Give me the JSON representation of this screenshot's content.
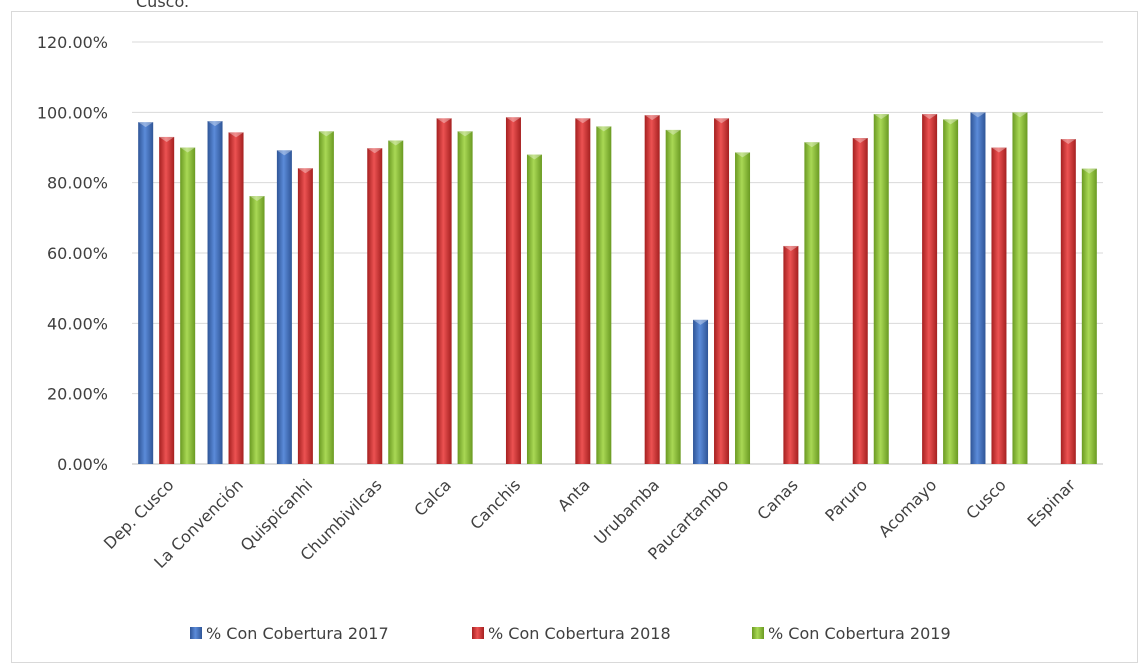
{
  "caption": "Cusco.",
  "chart_data": {
    "type": "bar",
    "categories": [
      "Dep. Cusco",
      "La Convención",
      "Quispicanhi",
      "Chumbivilcas",
      "Calca",
      "Canchis",
      "Anta",
      "Urubamba",
      "Paucartambo",
      "Canas",
      "Paruro",
      "Acomayo",
      "Cusco",
      "Espinar"
    ],
    "series": [
      {
        "name": "% Con Cobertura 2017",
        "color": "#4472c4",
        "values": [
          97.2,
          97.5,
          89.2,
          null,
          null,
          null,
          null,
          null,
          41.0,
          null,
          null,
          null,
          100.0,
          null
        ]
      },
      {
        "name": "% Con Cobertura 2018",
        "color": "#e03c3c",
        "values": [
          93.0,
          94.3,
          84.1,
          89.8,
          98.3,
          98.6,
          98.3,
          99.2,
          98.3,
          62.0,
          92.7,
          99.5,
          90.0,
          92.4
        ]
      },
      {
        "name": "% Con Cobertura 2019",
        "color": "#92c83e",
        "values": [
          90.0,
          76.2,
          94.6,
          92.0,
          94.6,
          88.0,
          96.0,
          95.0,
          88.6,
          91.5,
          99.5,
          98.0,
          100.0,
          84.0
        ]
      }
    ],
    "y_ticks": [
      "0.00%",
      "20.00%",
      "40.00%",
      "60.00%",
      "80.00%",
      "100.00%",
      "120.00%"
    ],
    "ylim": [
      0,
      120
    ],
    "grid": true,
    "legend_position": "bottom"
  }
}
